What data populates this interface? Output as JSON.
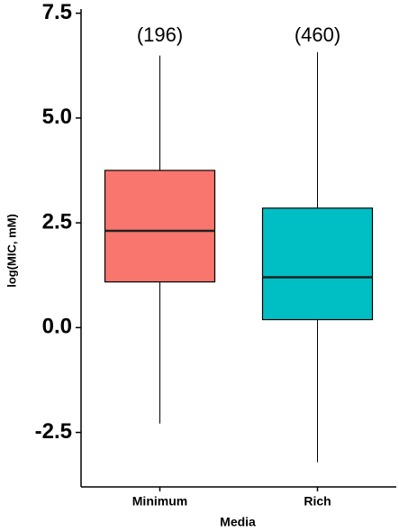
{
  "chart_data": {
    "type": "box",
    "x_label": "Media",
    "y_label": "log(MIC, mM)",
    "categories": [
      "Minimum",
      "Rich"
    ],
    "annotations": [
      "(196)",
      "(460)"
    ],
    "boxes": [
      {
        "min": -2.29,
        "q1": 1.09,
        "median": 2.31,
        "q3": 3.75,
        "max": 6.49,
        "color": "#f8766d"
      },
      {
        "min": -3.21,
        "q1": 0.19,
        "median": 1.2,
        "q3": 2.85,
        "max": 6.57,
        "color": "#00bfc4"
      }
    ],
    "ylim": [
      -3.8,
      7.6
    ],
    "yticks": [
      {
        "value": -2.5,
        "label": "-2.5"
      },
      {
        "value": 0,
        "label": "0.0"
      },
      {
        "value": 2.5,
        "label": "2.5"
      },
      {
        "value": 5,
        "label": "5.0"
      },
      {
        "value": 7.5,
        "label": "7.5"
      }
    ]
  }
}
